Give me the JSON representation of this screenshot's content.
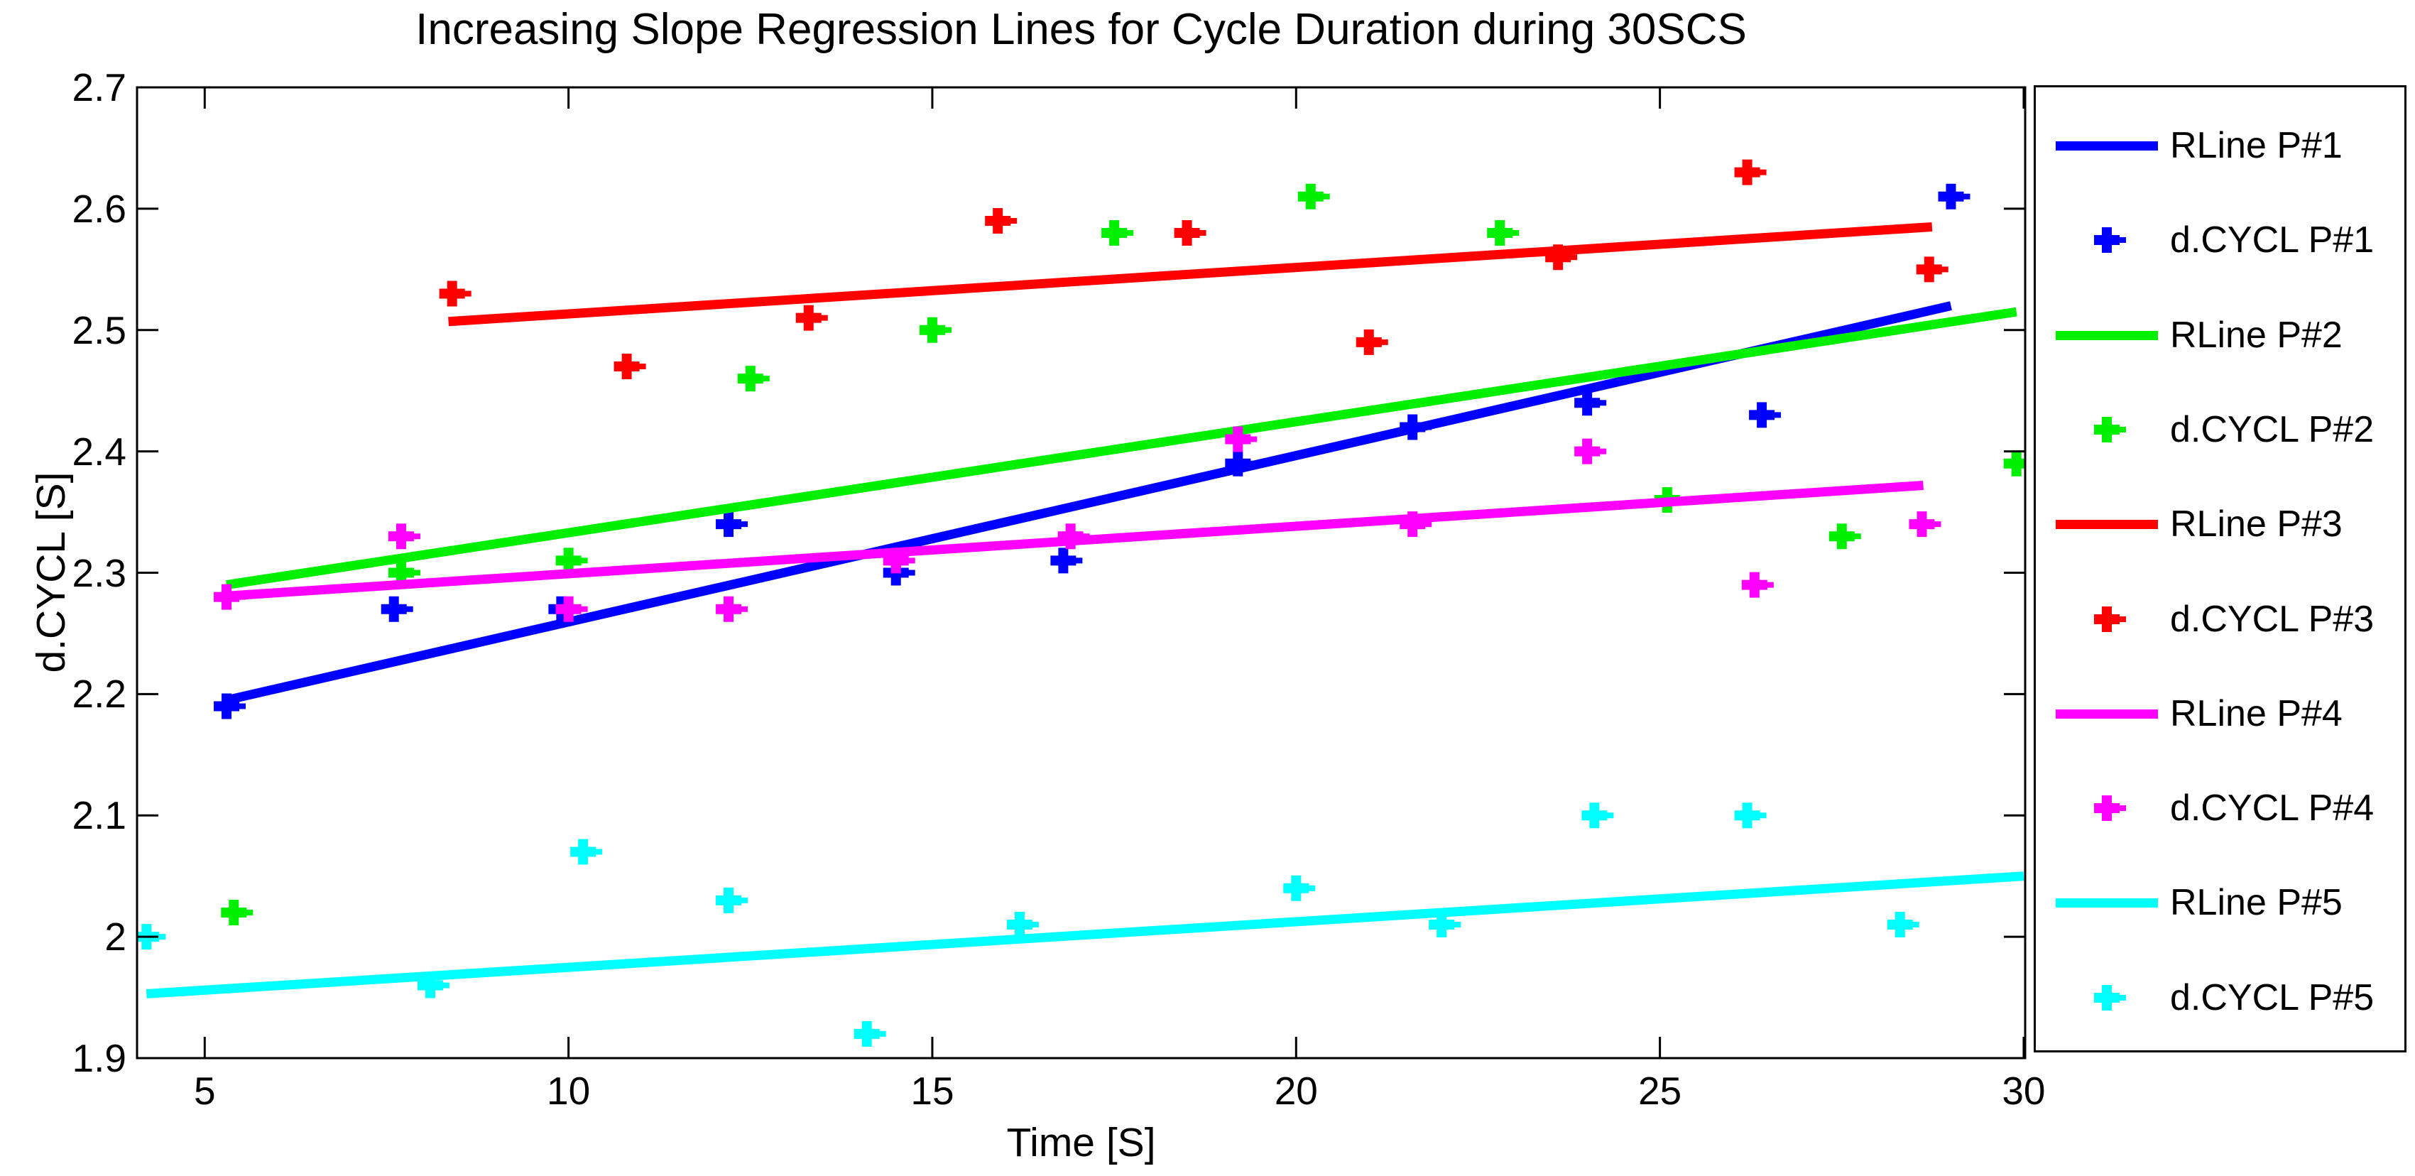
{
  "chart_data": {
    "type": "scatter",
    "title": "Increasing Slope Regression Lines for Cycle Duration during 30SCS",
    "xlabel": "Time [S]",
    "ylabel": "d.CYCL [S]",
    "xlim": [
      4.07,
      30.02
    ],
    "ylim": [
      1.9,
      2.7
    ],
    "xticks": [
      5,
      10,
      15,
      20,
      25,
      30
    ],
    "xtick_labels": [
      "5",
      "10",
      "15",
      "20",
      "25",
      "30"
    ],
    "yticks": [
      1.9,
      2.0,
      2.1,
      2.2,
      2.3,
      2.4,
      2.5,
      2.6,
      2.7
    ],
    "ytick_labels": [
      "1.9",
      "2",
      "2.1",
      "2.2",
      "2.3",
      "2.4",
      "2.5",
      "2.6",
      "2.7"
    ],
    "grid": false,
    "marker": "plus",
    "axis_color": "#000000",
    "background": "#ffffff",
    "legend_position": "right-outside",
    "series": [
      {
        "name": "d.CYCL P#1",
        "color": "#0000FF",
        "points": [
          [
            5.3,
            2.19
          ],
          [
            7.6,
            2.27
          ],
          [
            9.9,
            2.27
          ],
          [
            12.2,
            2.34
          ],
          [
            14.5,
            2.3
          ],
          [
            16.8,
            2.31
          ],
          [
            19.2,
            2.39
          ],
          [
            21.6,
            2.42
          ],
          [
            24.0,
            2.44
          ],
          [
            26.4,
            2.43
          ],
          [
            29.0,
            2.61
          ]
        ]
      },
      {
        "name": "d.CYCL P#2",
        "color": "#00F000",
        "points": [
          [
            5.4,
            2.02
          ],
          [
            7.7,
            2.3
          ],
          [
            10.0,
            2.31
          ],
          [
            12.5,
            2.46
          ],
          [
            15.0,
            2.5
          ],
          [
            17.5,
            2.58
          ],
          [
            20.2,
            2.61
          ],
          [
            22.8,
            2.58
          ],
          [
            25.1,
            2.36
          ],
          [
            27.5,
            2.33
          ],
          [
            29.9,
            2.39
          ]
        ]
      },
      {
        "name": "d.CYCL P#3",
        "color": "#FF0000",
        "points": [
          [
            8.4,
            2.53
          ],
          [
            10.8,
            2.47
          ],
          [
            13.3,
            2.51
          ],
          [
            15.9,
            2.59
          ],
          [
            18.5,
            2.58
          ],
          [
            21.0,
            2.49
          ],
          [
            23.6,
            2.56
          ],
          [
            26.2,
            2.63
          ],
          [
            28.7,
            2.55
          ]
        ]
      },
      {
        "name": "d.CYCL P#4",
        "color": "#FF00FF",
        "points": [
          [
            5.3,
            2.28
          ],
          [
            7.7,
            2.33
          ],
          [
            10.0,
            2.27
          ],
          [
            12.2,
            2.27
          ],
          [
            14.5,
            2.31
          ],
          [
            16.9,
            2.33
          ],
          [
            19.2,
            2.41
          ],
          [
            21.6,
            2.34
          ],
          [
            24.0,
            2.4
          ],
          [
            26.3,
            2.29
          ],
          [
            28.6,
            2.34
          ]
        ]
      },
      {
        "name": "d.CYCL P#5",
        "color": "#00FFFF",
        "points": [
          [
            4.2,
            2.0
          ],
          [
            8.1,
            1.96
          ],
          [
            10.2,
            2.07
          ],
          [
            12.2,
            2.03
          ],
          [
            14.1,
            1.92
          ],
          [
            16.2,
            2.01
          ],
          [
            20.0,
            2.04
          ],
          [
            22.0,
            2.01
          ],
          [
            24.1,
            2.1
          ],
          [
            26.2,
            2.1
          ],
          [
            28.3,
            2.01
          ]
        ]
      }
    ],
    "regression_lines": [
      {
        "name": "RLine P#1",
        "color": "#0000FF",
        "x1": 5.3,
        "y1": 2.195,
        "x2": 29.0,
        "y2": 2.52
      },
      {
        "name": "RLine P#2",
        "color": "#00F000",
        "x1": 5.3,
        "y1": 2.29,
        "x2": 29.9,
        "y2": 2.515
      },
      {
        "name": "RLine P#3",
        "color": "#FF0000",
        "x1": 8.35,
        "y1": 2.507,
        "x2": 28.74,
        "y2": 2.585
      },
      {
        "name": "RLine P#4",
        "color": "#FF00FF",
        "x1": 5.35,
        "y1": 2.281,
        "x2": 28.62,
        "y2": 2.372
      },
      {
        "name": "RLine P#5",
        "color": "#00FFFF",
        "x1": 4.2,
        "y1": 1.953,
        "x2": 30.0,
        "y2": 2.05
      }
    ],
    "legend": {
      "entries": [
        {
          "label": "RLine P#1",
          "type": "line",
          "color": "#0000FF"
        },
        {
          "label": "d.CYCL P#1",
          "type": "marker",
          "color": "#0000FF"
        },
        {
          "label": "RLine P#2",
          "type": "line",
          "color": "#00F000"
        },
        {
          "label": "d.CYCL P#2",
          "type": "marker",
          "color": "#00F000"
        },
        {
          "label": "RLine P#3",
          "type": "line",
          "color": "#FF0000"
        },
        {
          "label": "d.CYCL P#3",
          "type": "marker",
          "color": "#FF0000"
        },
        {
          "label": "RLine P#4",
          "type": "line",
          "color": "#FF00FF"
        },
        {
          "label": "d.CYCL P#4",
          "type": "marker",
          "color": "#FF00FF"
        },
        {
          "label": "RLine P#5",
          "type": "line",
          "color": "#00FFFF"
        },
        {
          "label": "d.CYCL P#5",
          "type": "marker",
          "color": "#00FFFF"
        }
      ]
    }
  }
}
